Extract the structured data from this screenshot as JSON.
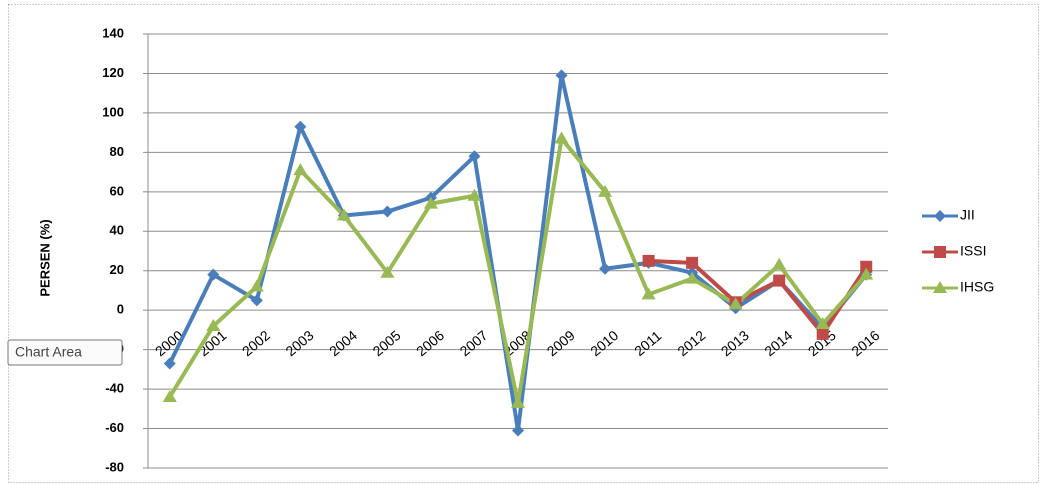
{
  "chart_data": {
    "type": "line",
    "y_label": "PERSEN (%)",
    "categories": [
      "2000",
      "2001",
      "2002",
      "2003",
      "2004",
      "2005",
      "2006",
      "2007",
      "2008",
      "2009",
      "2010",
      "2011",
      "2012",
      "2013",
      "2014",
      "2015",
      "2016"
    ],
    "series": [
      {
        "name": "JII",
        "color": "#4a7ebb",
        "marker": "diamond",
        "values": [
          -27,
          18,
          5,
          93,
          48,
          50,
          57,
          78,
          -61,
          119,
          21,
          24,
          19,
          1,
          15,
          -9,
          18
        ]
      },
      {
        "name": "ISSI",
        "color": "#be4b48",
        "marker": "square",
        "values": [
          null,
          null,
          null,
          null,
          null,
          null,
          null,
          null,
          null,
          null,
          null,
          25,
          24,
          4,
          15,
          -12,
          22
        ]
      },
      {
        "name": "IHSG",
        "color": "#98b954",
        "marker": "triangle",
        "values": [
          -44,
          -8,
          12,
          71,
          48,
          19,
          54,
          58,
          -47,
          87,
          60,
          8,
          16,
          3,
          23,
          -7,
          18
        ]
      }
    ],
    "ylim": [
      -80,
      140
    ],
    "yticks": [
      -80,
      -60,
      -40,
      -20,
      0,
      20,
      40,
      60,
      80,
      100,
      120,
      140
    ],
    "grid": true,
    "legend": "right"
  },
  "tooltip": "Chart Area"
}
